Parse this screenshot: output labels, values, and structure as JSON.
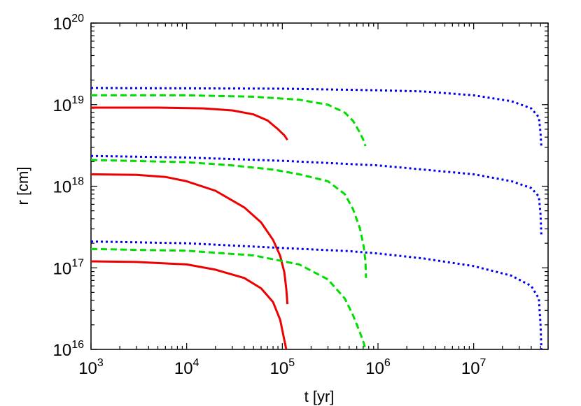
{
  "chart_data": {
    "type": "line",
    "title": "",
    "xlabel": "t [yr]",
    "ylabel": "r [cm]",
    "xscale": "log",
    "yscale": "log",
    "xlim": [
      1000,
      60000000
    ],
    "ylim": [
      1e+16,
      1e+20
    ],
    "grid": false,
    "legend": "none",
    "x_ticks": [
      {
        "base": "10",
        "exp": "3",
        "value": 1000
      },
      {
        "base": "10",
        "exp": "4",
        "value": 10000
      },
      {
        "base": "10",
        "exp": "5",
        "value": 100000
      },
      {
        "base": "10",
        "exp": "6",
        "value": 1000000
      },
      {
        "base": "10",
        "exp": "7",
        "value": 10000000
      }
    ],
    "y_ticks": [
      {
        "base": "10",
        "exp": "16",
        "value": 1e+16
      },
      {
        "base": "10",
        "exp": "17",
        "value": 1e+17
      },
      {
        "base": "10",
        "exp": "18",
        "value": 1e+18
      },
      {
        "base": "10",
        "exp": "19",
        "value": 1e+19
      },
      {
        "base": "10",
        "exp": "20",
        "value": 1e+20
      }
    ],
    "series": [
      {
        "color": "#ee0000",
        "dash": "solid",
        "points": [
          [
            1000,
            1.2e+17
          ],
          [
            3000,
            1.18e+17
          ],
          [
            10000,
            1.1e+17
          ],
          [
            20000,
            9.5e+16
          ],
          [
            40000,
            7.5e+16
          ],
          [
            60000,
            5.6e+16
          ],
          [
            80000,
            3.8e+16
          ],
          [
            95000,
            2.3e+16
          ],
          [
            105000,
            1.3e+16
          ],
          [
            110000,
            1e+16
          ]
        ]
      },
      {
        "color": "#ee0000",
        "dash": "solid",
        "points": [
          [
            1000,
            1.4e+18
          ],
          [
            3000,
            1.38e+18
          ],
          [
            6000,
            1.3e+18
          ],
          [
            10000,
            1.15e+18
          ],
          [
            20000,
            8.8e+17
          ],
          [
            40000,
            5.5e+17
          ],
          [
            60000,
            3.6e+17
          ],
          [
            80000,
            2.2e+17
          ],
          [
            95000,
            1.4e+17
          ],
          [
            105000,
            8.8e+16
          ],
          [
            110000,
            5.5e+16
          ],
          [
            113000,
            3.6e+16
          ]
        ]
      },
      {
        "color": "#ee0000",
        "dash": "solid",
        "points": [
          [
            1000,
            9.2e+18
          ],
          [
            5000,
            9.2e+18
          ],
          [
            15000,
            9e+18
          ],
          [
            30000,
            8.5e+18
          ],
          [
            50000,
            7.6e+18
          ],
          [
            70000,
            6.4e+18
          ],
          [
            90000,
            5e+18
          ],
          [
            105000,
            4.2e+18
          ],
          [
            113000,
            3.7e+18
          ]
        ]
      },
      {
        "color": "#00dd00",
        "dash": "dashed",
        "points": [
          [
            1000,
            1.7e+17
          ],
          [
            10000,
            1.62e+17
          ],
          [
            50000,
            1.42e+17
          ],
          [
            150000,
            1.1e+17
          ],
          [
            300000,
            7.2e+16
          ],
          [
            450000,
            4.2e+16
          ],
          [
            550000,
            2.6e+16
          ],
          [
            650000,
            1.6e+16
          ],
          [
            710000,
            1.2e+16
          ],
          [
            740000,
            1e+16
          ]
        ]
      },
      {
        "color": "#00dd00",
        "dash": "dashed",
        "points": [
          [
            1000,
            2.1e+18
          ],
          [
            10000,
            1.97e+18
          ],
          [
            30000,
            1.8e+18
          ],
          [
            80000,
            1.6e+18
          ],
          [
            150000,
            1.4e+18
          ],
          [
            300000,
            1.15e+18
          ],
          [
            450000,
            8e+17
          ],
          [
            550000,
            5.2e+17
          ],
          [
            650000,
            3e+17
          ],
          [
            710000,
            1.8e+17
          ],
          [
            740000,
            1.2e+17
          ],
          [
            750000,
            7.5e+16
          ]
        ]
      },
      {
        "color": "#00dd00",
        "dash": "dashed",
        "points": [
          [
            1000,
            1.3e+19
          ],
          [
            10000,
            1.3e+19
          ],
          [
            50000,
            1.25e+19
          ],
          [
            150000,
            1.15e+19
          ],
          [
            300000,
            1e+19
          ],
          [
            450000,
            8e+18
          ],
          [
            550000,
            6.3e+18
          ],
          [
            650000,
            4.5e+18
          ],
          [
            710000,
            3.6e+18
          ],
          [
            740000,
            3.1e+18
          ]
        ]
      },
      {
        "color": "#0000ee",
        "dash": "dotted",
        "points": [
          [
            1000,
            2.1e+17
          ],
          [
            10000,
            2e+17
          ],
          [
            100000,
            1.75e+17
          ],
          [
            500000,
            1.6e+17
          ],
          [
            1000000,
            1.5e+17
          ],
          [
            3000000,
            1.3e+17
          ],
          [
            10000000,
            1.05e+17
          ],
          [
            25000000,
            8e+16
          ],
          [
            40000000,
            6e+16
          ],
          [
            48000000,
            4.2e+16
          ],
          [
            50000000,
            2e+16
          ],
          [
            51000000,
            1e+16
          ]
        ]
      },
      {
        "color": "#0000ee",
        "dash": "dotted",
        "points": [
          [
            1000,
            2.35e+18
          ],
          [
            10000,
            2.25e+18
          ],
          [
            100000,
            2.05e+18
          ],
          [
            1000000,
            1.8e+18
          ],
          [
            3000000,
            1.6e+18
          ],
          [
            10000000,
            1.4e+18
          ],
          [
            25000000,
            1.15e+18
          ],
          [
            40000000,
            9.5e+17
          ],
          [
            48000000,
            7.5e+17
          ],
          [
            50000000,
            4.5e+17
          ],
          [
            51000000,
            2.5e+17
          ]
        ]
      },
      {
        "color": "#0000ee",
        "dash": "dotted",
        "points": [
          [
            1000,
            1.6e+19
          ],
          [
            100000,
            1.57e+19
          ],
          [
            1000000,
            1.5e+19
          ],
          [
            3000000,
            1.45e+19
          ],
          [
            10000000,
            1.3e+19
          ],
          [
            25000000,
            1.1e+19
          ],
          [
            40000000,
            9e+18
          ],
          [
            48000000,
            7e+18
          ],
          [
            50000000,
            4.5e+18
          ],
          [
            51000000,
            3e+18
          ]
        ]
      }
    ]
  }
}
